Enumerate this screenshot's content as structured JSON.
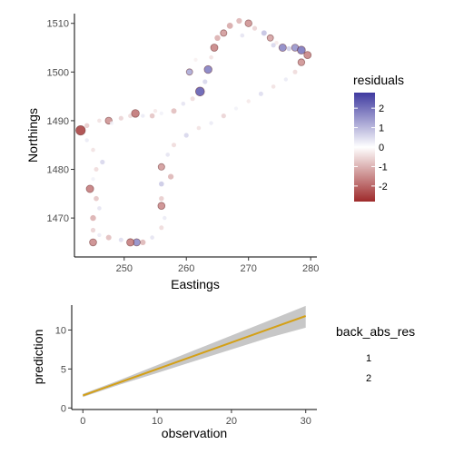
{
  "chart_data": [
    {
      "type": "scatter",
      "xlabel": "Eastings",
      "ylabel": "Northings",
      "xlim": [
        242,
        281
      ],
      "ylim": [
        1462,
        1512
      ],
      "xticks": [
        250,
        260,
        270,
        280
      ],
      "yticks": [
        1470,
        1480,
        1490,
        1500,
        1510
      ],
      "grid": false,
      "legend": {
        "title": "residuals",
        "position": "right",
        "type": "colorbar",
        "range": [
          -2.8,
          2.8
        ],
        "ticks": [
          2,
          1,
          0,
          -1,
          -2
        ],
        "colors": {
          "low": "#9e2a2b",
          "mid": "#ffffff",
          "high": "#3f3aa0"
        }
      },
      "points": [
        {
          "x": 243.0,
          "y": 1488.0,
          "residual": -2.6
        },
        {
          "x": 244.5,
          "y": 1476.0,
          "residual": -1.8
        },
        {
          "x": 245.0,
          "y": 1465.0,
          "residual": -1.6
        },
        {
          "x": 244.0,
          "y": 1489.0,
          "residual": -0.7
        },
        {
          "x": 246.0,
          "y": 1490.0,
          "residual": -0.4
        },
        {
          "x": 247.5,
          "y": 1490.0,
          "residual": -1.5
        },
        {
          "x": 249.5,
          "y": 1490.5,
          "residual": -0.6
        },
        {
          "x": 251.0,
          "y": 1491.0,
          "residual": -0.5
        },
        {
          "x": 251.8,
          "y": 1491.5,
          "residual": -1.9
        },
        {
          "x": 253.0,
          "y": 1491.0,
          "residual": 0.3
        },
        {
          "x": 254.5,
          "y": 1491.0,
          "residual": -0.8
        },
        {
          "x": 256.0,
          "y": 1491.5,
          "residual": 0.2
        },
        {
          "x": 258.0,
          "y": 1492.0,
          "residual": -0.9
        },
        {
          "x": 259.5,
          "y": 1493.5,
          "residual": 0.4
        },
        {
          "x": 261.0,
          "y": 1494.5,
          "residual": -0.5
        },
        {
          "x": 262.2,
          "y": 1496.0,
          "residual": 2.4
        },
        {
          "x": 263.0,
          "y": 1498.0,
          "residual": 0.6
        },
        {
          "x": 263.5,
          "y": 1500.5,
          "residual": 1.9
        },
        {
          "x": 264.0,
          "y": 1503.0,
          "residual": -0.4
        },
        {
          "x": 264.5,
          "y": 1505.0,
          "residual": -1.7
        },
        {
          "x": 266.0,
          "y": 1508.0,
          "residual": -1.4
        },
        {
          "x": 267.0,
          "y": 1509.5,
          "residual": -1.2
        },
        {
          "x": 268.5,
          "y": 1510.5,
          "residual": -1.0
        },
        {
          "x": 270.0,
          "y": 1510.0,
          "residual": -1.5
        },
        {
          "x": 271.0,
          "y": 1509.0,
          "residual": -0.6
        },
        {
          "x": 272.5,
          "y": 1508.0,
          "residual": 0.9
        },
        {
          "x": 273.5,
          "y": 1507.0,
          "residual": -1.3
        },
        {
          "x": 274.5,
          "y": 1506.0,
          "residual": -0.3
        },
        {
          "x": 275.5,
          "y": 1505.0,
          "residual": 1.8
        },
        {
          "x": 276.5,
          "y": 1504.8,
          "residual": 0.7
        },
        {
          "x": 277.5,
          "y": 1505.0,
          "residual": 1.6
        },
        {
          "x": 278.5,
          "y": 1504.5,
          "residual": 2.0
        },
        {
          "x": 279.5,
          "y": 1503.5,
          "residual": -1.7
        },
        {
          "x": 278.5,
          "y": 1502.0,
          "residual": -1.5
        },
        {
          "x": 277.5,
          "y": 1500.0,
          "residual": -0.5
        },
        {
          "x": 276.0,
          "y": 1498.5,
          "residual": 0.3
        },
        {
          "x": 274.0,
          "y": 1497.0,
          "residual": -0.4
        },
        {
          "x": 272.0,
          "y": 1495.5,
          "residual": 0.5
        },
        {
          "x": 270.0,
          "y": 1494.0,
          "residual": -0.3
        },
        {
          "x": 268.0,
          "y": 1492.5,
          "residual": 0.2
        },
        {
          "x": 266.0,
          "y": 1491.0,
          "residual": -0.6
        },
        {
          "x": 264.0,
          "y": 1489.5,
          "residual": 0.3
        },
        {
          "x": 262.0,
          "y": 1488.5,
          "residual": -0.4
        },
        {
          "x": 260.0,
          "y": 1487.0,
          "residual": 0.6
        },
        {
          "x": 258.0,
          "y": 1485.0,
          "residual": -0.5
        },
        {
          "x": 257.0,
          "y": 1483.0,
          "residual": 0.4
        },
        {
          "x": 256.0,
          "y": 1480.5,
          "residual": -1.4
        },
        {
          "x": 256.0,
          "y": 1477.0,
          "residual": 0.8
        },
        {
          "x": 256.0,
          "y": 1474.0,
          "residual": -0.7
        },
        {
          "x": 256.0,
          "y": 1472.5,
          "residual": -1.6
        },
        {
          "x": 256.5,
          "y": 1470.0,
          "residual": 0.3
        },
        {
          "x": 256.0,
          "y": 1468.0,
          "residual": -0.5
        },
        {
          "x": 254.5,
          "y": 1466.0,
          "residual": 0.4
        },
        {
          "x": 253.0,
          "y": 1465.0,
          "residual": -1.0
        },
        {
          "x": 252.0,
          "y": 1465.0,
          "residual": 1.7
        },
        {
          "x": 251.0,
          "y": 1465.0,
          "residual": -1.8
        },
        {
          "x": 249.5,
          "y": 1465.5,
          "residual": 0.5
        },
        {
          "x": 247.5,
          "y": 1466.0,
          "residual": -0.9
        },
        {
          "x": 246.0,
          "y": 1466.5,
          "residual": 0.3
        },
        {
          "x": 245.0,
          "y": 1467.5,
          "residual": -0.6
        },
        {
          "x": 245.0,
          "y": 1470.0,
          "residual": -1.1
        },
        {
          "x": 246.0,
          "y": 1472.0,
          "residual": 0.4
        },
        {
          "x": 245.5,
          "y": 1474.0,
          "residual": -0.8
        },
        {
          "x": 245.0,
          "y": 1478.0,
          "residual": 0.2
        },
        {
          "x": 245.5,
          "y": 1480.0,
          "residual": -0.5
        },
        {
          "x": 246.5,
          "y": 1481.5,
          "residual": 0.6
        },
        {
          "x": 245.0,
          "y": 1484.0,
          "residual": -0.4
        },
        {
          "x": 244.0,
          "y": 1486.0,
          "residual": 0.3
        },
        {
          "x": 248.0,
          "y": 1489.5,
          "residual": 0.2
        },
        {
          "x": 255.0,
          "y": 1492.0,
          "residual": -0.3
        },
        {
          "x": 260.5,
          "y": 1500.0,
          "residual": 1.3
        },
        {
          "x": 261.5,
          "y": 1502.5,
          "residual": -0.2
        },
        {
          "x": 265.0,
          "y": 1507.0,
          "residual": -1.1
        },
        {
          "x": 269.0,
          "y": 1507.5,
          "residual": 0.4
        },
        {
          "x": 274.0,
          "y": 1505.5,
          "residual": 0.6
        },
        {
          "x": 257.5,
          "y": 1478.5,
          "residual": -1.0
        }
      ]
    },
    {
      "type": "line",
      "xlabel": "observation",
      "ylabel": "prediction",
      "xlim": [
        -1.5,
        31.5
      ],
      "ylim": [
        -0.2,
        13.2
      ],
      "xticks": [
        0,
        10,
        20,
        30
      ],
      "yticks": [
        0,
        5,
        10
      ],
      "grid": false,
      "legend": {
        "title": "back_abs_res",
        "position": "right",
        "entries": [
          "1",
          "2"
        ]
      },
      "series": [
        {
          "x": [
            0,
            5,
            10,
            15,
            20,
            25,
            30
          ],
          "values": [
            1.6,
            3.3,
            5.0,
            6.7,
            8.4,
            10.1,
            11.8
          ]
        }
      ],
      "ribbon": {
        "x": [
          0,
          5,
          10,
          15,
          20,
          25,
          30
        ],
        "lower": [
          1.4,
          3.0,
          4.5,
          6.0,
          7.5,
          9.0,
          10.3
        ],
        "upper": [
          1.8,
          3.6,
          5.5,
          7.4,
          9.3,
          11.2,
          13.1
        ]
      },
      "colors": {
        "line": "#d4a017",
        "ribbon": "#bdbdbd"
      }
    }
  ]
}
